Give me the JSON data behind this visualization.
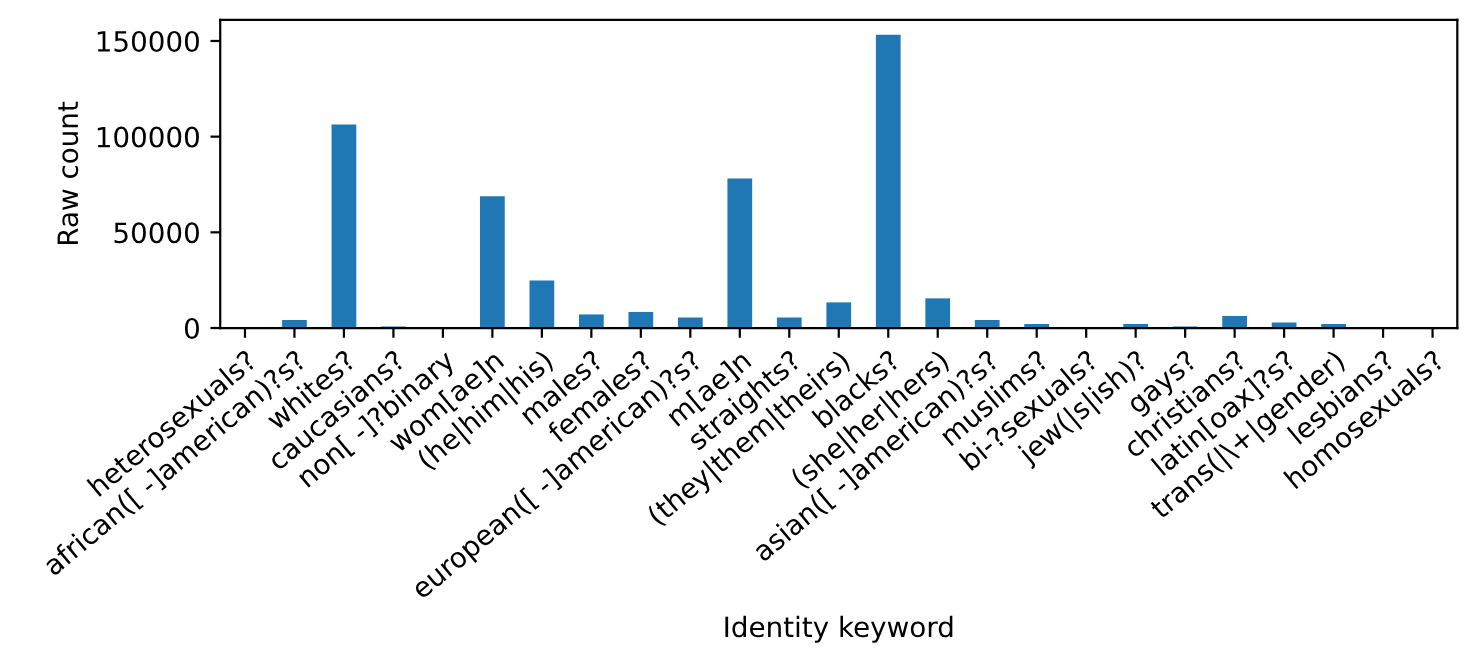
{
  "chart_data": {
    "type": "bar",
    "xlabel": "Identity keyword",
    "ylabel": "Raw count",
    "categories": [
      "heterosexuals?",
      "african([ -]american)?s?",
      "whites?",
      "caucasians?",
      "non[ -]?binary",
      "wom[ae]n",
      "(he|him|his)",
      "males?",
      "females?",
      "european([ -]american)?s?",
      "m[ae]n",
      "straights?",
      "(they|them|theirs)",
      "blacks?",
      "(she|her|hers)",
      "asian([ -]american)?s?",
      "muslims?",
      "bi-?sexuals?",
      "jew(|s|ish)?",
      "gays?",
      "christians?",
      "latin[oax]?s?",
      "trans(|\\+|gender)",
      "lesbians?",
      "homosexuals?"
    ],
    "values": [
      0,
      4200,
      106300,
      800,
      0,
      68900,
      24800,
      7100,
      8400,
      5500,
      78100,
      5500,
      13400,
      153300,
      15500,
      4200,
      2100,
      0,
      2100,
      800,
      6300,
      2900,
      2100,
      0,
      0
    ],
    "color": "#1f77b4",
    "ylim": [
      0,
      161000
    ],
    "yticks": [
      0,
      50000,
      100000,
      150000
    ],
    "grid": false,
    "legend": false
  }
}
